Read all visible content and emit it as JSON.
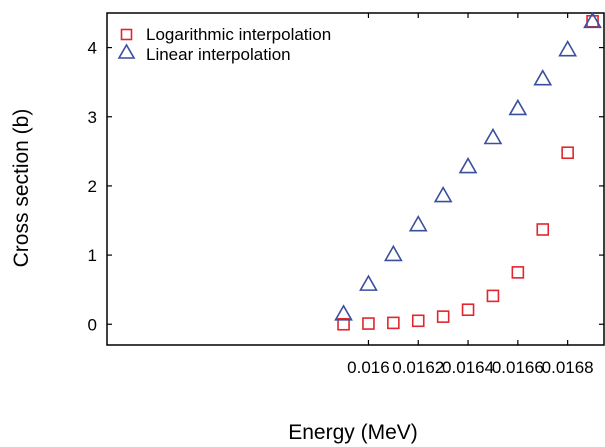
{
  "colors": {
    "logarithmic": "#e0262e",
    "linear": "#3a4f9e",
    "axis": "#000000"
  },
  "chart_data": {
    "type": "scatter",
    "title": "",
    "xlabel": "Energy (MeV)",
    "ylabel": "Cross section (b)",
    "xlim": [
      0.01495,
      0.01695
    ],
    "ylim": [
      -0.3,
      4.5
    ],
    "x_ticks": [
      0.016,
      0.0162,
      0.0164,
      0.0166,
      0.0168
    ],
    "x_tick_labels": [
      "0.016",
      "0.0162",
      "0.0164",
      "0.0166",
      "0.0168"
    ],
    "y_ticks": [
      0,
      1,
      2,
      3,
      4
    ],
    "y_tick_labels": [
      "0",
      "1",
      "2",
      "3",
      "4"
    ],
    "grid": false,
    "legend_position": "top-left",
    "series": [
      {
        "name": "Logarithmic interpolation",
        "marker": "square",
        "x": [
          0.0159,
          0.016,
          0.0161,
          0.0162,
          0.0163,
          0.0164,
          0.0165,
          0.0166,
          0.0167,
          0.0168,
          0.0169
        ],
        "y": [
          0.0,
          0.01,
          0.02,
          0.05,
          0.11,
          0.21,
          0.41,
          0.75,
          1.37,
          2.48,
          4.38
        ]
      },
      {
        "name": "Linear interpolation",
        "marker": "triangle",
        "x": [
          0.0159,
          0.016,
          0.0161,
          0.0162,
          0.0163,
          0.0164,
          0.0165,
          0.0166,
          0.0167,
          0.0168,
          0.0169
        ],
        "y": [
          0.15,
          0.58,
          1.01,
          1.44,
          1.86,
          2.28,
          2.7,
          3.12,
          3.55,
          3.97,
          4.38
        ]
      }
    ]
  }
}
